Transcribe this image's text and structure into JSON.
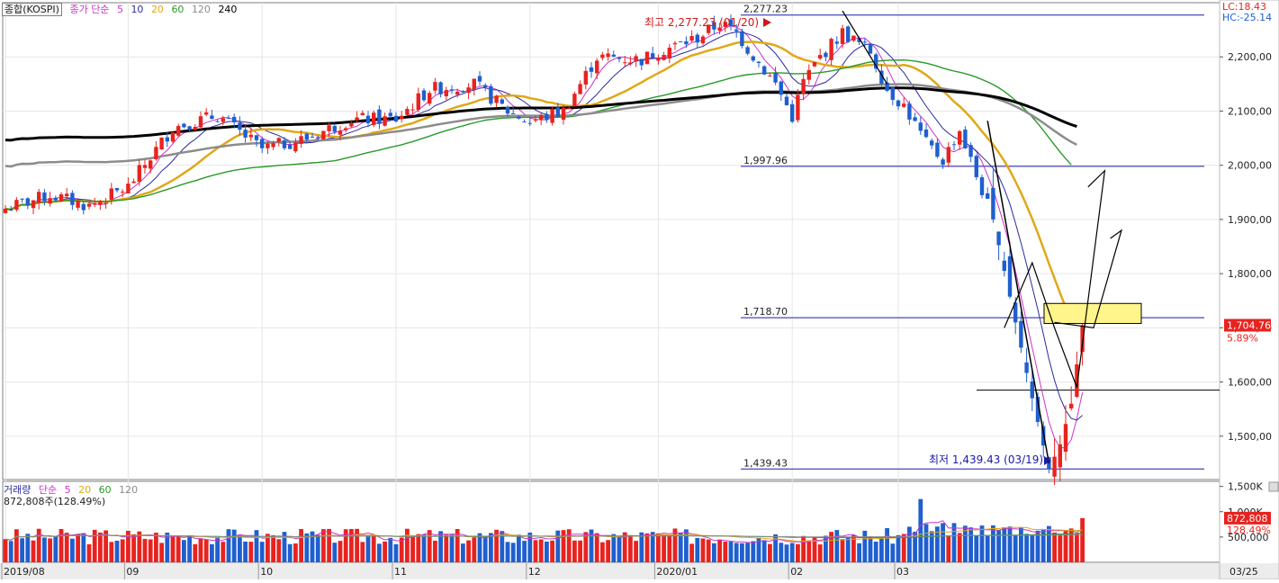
{
  "header": {
    "index_name": "종합(KOSPI)",
    "ma_title": "종가 단순",
    "ma_periods": [
      "5",
      "10",
      "20",
      "60",
      "120",
      "240"
    ],
    "lc": "LC:18.43",
    "hc": "HC:-25.14"
  },
  "volume_header": {
    "title": "거래량",
    "ma_title": "단순",
    "ma_periods": [
      "5",
      "20",
      "60",
      "120"
    ],
    "value_text": "872,808주(128.49%)"
  },
  "annotations": {
    "high_label": "최고 2,277.23 (01/20)",
    "low_label": "최저 1,439.43 (03/19)",
    "levels": [
      "2,277.23",
      "1,997.96",
      "1,718.70",
      "1,439.43"
    ],
    "current_price": "1,704.76",
    "current_pct": "5.89%",
    "volume_current": "872,808",
    "volume_pct": "128.49%"
  },
  "colors": {
    "up": "#e8231f",
    "down": "#1f5fcf",
    "ma5": "#cc33cc",
    "ma10": "#2a2aa0",
    "ma20": "#e0a818",
    "ma60": "#2a9a2a",
    "ma120": "#8c8c8c",
    "ma240": "#000000",
    "level_line": "#1a1aa8",
    "zone_fill": "#fff58a"
  },
  "chart_data": [
    {
      "type": "candlestick",
      "title": "종합(KOSPI)",
      "y_range": [
        1420,
        2300
      ],
      "y_ticks": [
        "2,200,00",
        "2,100,00",
        "2,000,00",
        "1,900,00",
        "1,800,00",
        "1,700,00",
        "1,600,00",
        "1,500,00"
      ],
      "y_tick_values": [
        2200,
        2100,
        2000,
        1900,
        1800,
        1700,
        1600,
        1500
      ],
      "x_ticks": [
        "2019/08",
        "09",
        "10",
        "11",
        "12",
        "2020/01",
        "02",
        "03",
        "03/25"
      ],
      "x_tick_index": [
        0,
        22,
        46,
        70,
        94,
        117,
        141,
        160,
        183
      ],
      "close_first": 1920,
      "path": [
        [
          0,
          1920
        ],
        [
          8,
          1945
        ],
        [
          15,
          1925
        ],
        [
          22,
          1960
        ],
        [
          30,
          2070
        ],
        [
          38,
          2092
        ],
        [
          46,
          2030
        ],
        [
          54,
          2050
        ],
        [
          62,
          2085
        ],
        [
          70,
          2085
        ],
        [
          76,
          2140
        ],
        [
          84,
          2150
        ],
        [
          90,
          2100
        ],
        [
          94,
          2080
        ],
        [
          100,
          2100
        ],
        [
          106,
          2200
        ],
        [
          114,
          2195
        ],
        [
          117,
          2210
        ],
        [
          124,
          2235
        ],
        [
          128,
          2262
        ],
        [
          131,
          2245
        ],
        [
          133,
          2215
        ],
        [
          138,
          2150
        ],
        [
          141,
          2090
        ],
        [
          143,
          2155
        ],
        [
          146,
          2200
        ],
        [
          150,
          2245
        ],
        [
          155,
          2210
        ],
        [
          158,
          2140
        ],
        [
          161,
          2110
        ],
        [
          165,
          2040
        ],
        [
          168,
          2010
        ],
        [
          171,
          2065
        ],
        [
          174,
          1980
        ],
        [
          177,
          1900
        ],
        [
          181,
          1710
        ],
        [
          184,
          1570
        ],
        [
          187,
          1439
        ],
        [
          189,
          1485
        ],
        [
          191,
          1560
        ],
        [
          193,
          1705
        ]
      ],
      "levels": [
        2277.23,
        1997.96,
        1718.7,
        1439.43
      ],
      "high": {
        "value": 2277.23,
        "date": "01/20"
      },
      "low": {
        "value": 1439.43,
        "date": "03/19"
      },
      "last_close": 1704.76,
      "last_change_pct": 5.89,
      "trend_zone": [
        1708,
        1745
      ],
      "support_line": 1585,
      "projection_path": [
        [
          179,
          1700
        ],
        [
          184,
          1820
        ],
        [
          188,
          1700
        ],
        [
          192,
          1590
        ],
        [
          197,
          1990
        ],
        [
          194,
          1960
        ]
      ],
      "projection_path_2": [
        [
          188,
          1710
        ],
        [
          195,
          1700
        ],
        [
          200,
          1880
        ],
        [
          198,
          1865
        ]
      ],
      "series": [
        {
          "name": "5",
          "period": 5
        },
        {
          "name": "10",
          "period": 10
        },
        {
          "name": "20",
          "period": 20
        },
        {
          "name": "60",
          "period": 60
        },
        {
          "name": "120",
          "period": 120
        },
        {
          "name": "240",
          "period": 240
        }
      ]
    },
    {
      "type": "bar",
      "title": "거래량",
      "y_range": [
        0,
        1600
      ],
      "y_ticks": [
        "1,500K",
        "1,000K",
        "500,000"
      ],
      "y_tick_values": [
        1500,
        1000,
        500
      ],
      "unit": "K",
      "typical": 500,
      "last_value": 872.808,
      "last_change_pct": 128.49,
      "series": [
        {
          "name": "5",
          "period": 5
        },
        {
          "name": "20",
          "period": 20
        },
        {
          "name": "60",
          "period": 60
        },
        {
          "name": "120",
          "period": 120
        }
      ]
    }
  ]
}
